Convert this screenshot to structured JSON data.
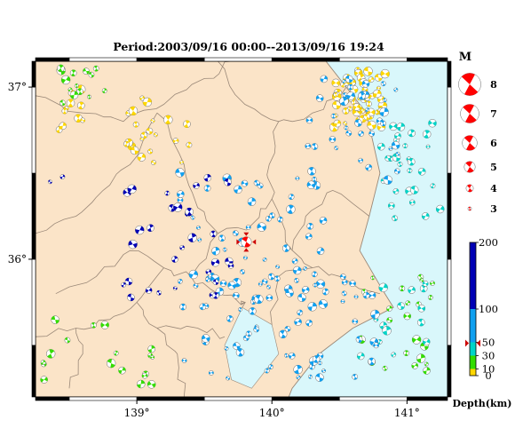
{
  "title": "Period:2003/09/16 00:00--2013/09/16 19:24",
  "map": {
    "lon_range": [
      138.25,
      141.3
    ],
    "lat_range": [
      35.2,
      37.15
    ],
    "x_ticks": [
      {
        "value": 139,
        "label": "139°"
      },
      {
        "value": 140,
        "label": "140°"
      },
      {
        "value": 141,
        "label": "141°"
      }
    ],
    "y_ticks": [
      {
        "value": 36,
        "label": "36°"
      },
      {
        "value": 37,
        "label": "37°"
      }
    ],
    "colors": {
      "land": "#fbe4c8",
      "sea": "#d9f7fb",
      "boundary": "#9a8878",
      "frame": "#000000"
    },
    "highlight_event": {
      "lon": 139.81,
      "lat": 36.1,
      "magnitude": 4.6,
      "color": "#ff0000"
    }
  },
  "magnitude_legend": {
    "title": "M",
    "color": "#ff0000",
    "items": [
      {
        "magnitude": 8,
        "label": "8"
      },
      {
        "magnitude": 7,
        "label": "7"
      },
      {
        "magnitude": 6,
        "label": "6"
      },
      {
        "magnitude": 5,
        "label": "5"
      },
      {
        "magnitude": 4,
        "label": "4"
      },
      {
        "magnitude": 3,
        "label": "3"
      }
    ]
  },
  "depth_scale": {
    "label": "Depth(km)",
    "ticks": [
      {
        "value": 200,
        "label": "200"
      },
      {
        "value": 100,
        "label": "100"
      },
      {
        "value": 50,
        "label": "50"
      },
      {
        "value": 30,
        "label": "30"
      },
      {
        "value": 10,
        "label": "10"
      },
      {
        "value": 0,
        "label": "0"
      }
    ],
    "colors": [
      {
        "from": 0,
        "to": 10,
        "color": "#ffd700"
      },
      {
        "from": 10,
        "to": 30,
        "color": "#33dd00"
      },
      {
        "from": 30,
        "to": 50,
        "color": "#00d4c8"
      },
      {
        "from": 50,
        "to": 100,
        "color": "#10a0f0"
      },
      {
        "from": 100,
        "to": 200,
        "color": "#0000b4"
      }
    ],
    "marker": {
      "value": 50,
      "color": "#cc0000"
    }
  },
  "chart_data": {
    "type": "scatter",
    "title": "Period:2003/09/16 00:00--2013/09/16 19:24",
    "xlabel": "",
    "ylabel": "",
    "xlim": [
      138.25,
      141.3
    ],
    "ylim": [
      35.2,
      37.15
    ],
    "legend": "right",
    "clusters": [
      {
        "depth_km": 5,
        "lon_range": [
          140.45,
          140.85
        ],
        "lat_range": [
          36.75,
          37.1
        ],
        "count": 55
      },
      {
        "depth_km": 5,
        "lon_range": [
          138.9,
          139.4
        ],
        "lat_range": [
          36.55,
          36.95
        ],
        "count": 22
      },
      {
        "depth_km": 5,
        "lon_range": [
          138.3,
          138.6
        ],
        "lat_range": [
          36.65,
          37.0
        ],
        "count": 10
      },
      {
        "depth_km": 20,
        "lon_range": [
          138.35,
          138.8
        ],
        "lat_range": [
          36.9,
          37.12
        ],
        "count": 14
      },
      {
        "depth_km": 20,
        "lon_range": [
          138.3,
          139.2
        ],
        "lat_range": [
          35.25,
          35.7
        ],
        "count": 18
      },
      {
        "depth_km": 20,
        "lon_range": [
          140.65,
          141.2
        ],
        "lat_range": [
          35.35,
          35.95
        ],
        "count": 22
      },
      {
        "depth_km": 40,
        "lon_range": [
          140.8,
          141.25
        ],
        "lat_range": [
          36.2,
          36.8
        ],
        "count": 28
      },
      {
        "depth_km": 40,
        "lon_range": [
          140.6,
          141.15
        ],
        "lat_range": [
          35.35,
          35.9
        ],
        "count": 14
      },
      {
        "depth_km": 70,
        "lon_range": [
          139.3,
          140.4
        ],
        "lat_range": [
          35.3,
          36.6
        ],
        "count": 95
      },
      {
        "depth_km": 70,
        "lon_range": [
          140.25,
          140.95
        ],
        "lat_range": [
          36.4,
          37.05
        ],
        "count": 40
      },
      {
        "depth_km": 70,
        "lon_range": [
          140.0,
          140.8
        ],
        "lat_range": [
          35.3,
          35.9
        ],
        "count": 30
      },
      {
        "depth_km": 150,
        "lon_range": [
          138.9,
          139.7
        ],
        "lat_range": [
          35.75,
          36.5
        ],
        "count": 30
      },
      {
        "depth_km": 150,
        "lon_range": [
          138.3,
          138.5
        ],
        "lat_range": [
          36.4,
          36.5
        ],
        "count": 2
      }
    ]
  }
}
